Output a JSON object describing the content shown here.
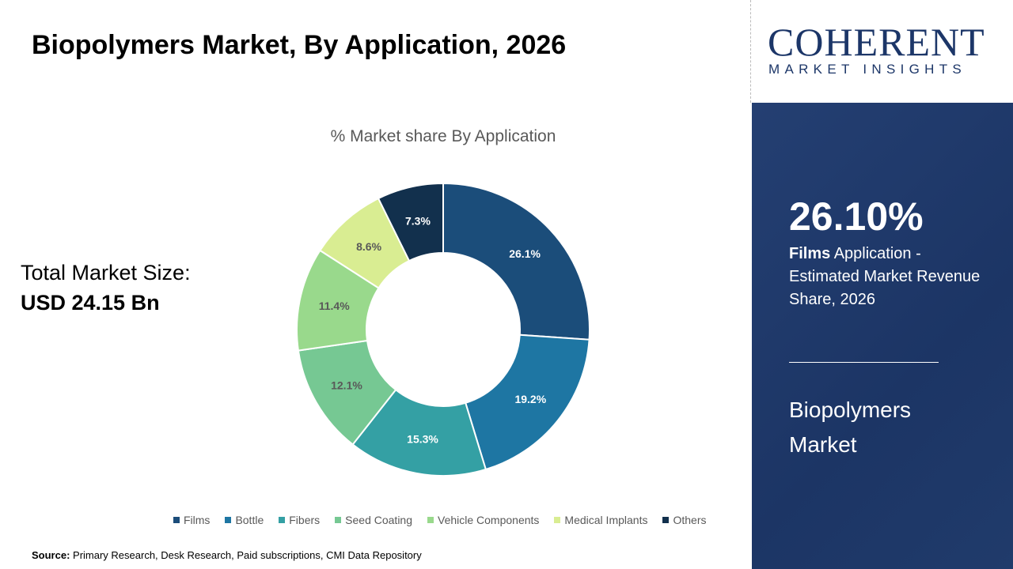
{
  "title": "Biopolymers Market, By Application, 2026",
  "total": {
    "label": "Total Market Size:",
    "value": "USD 24.15 Bn"
  },
  "source": {
    "label": "Source:",
    "text": "Primary Research, Desk Research, Paid subscriptions, CMI Data Repository"
  },
  "logo": {
    "name": "COHERENT",
    "tagline": "MARKET INSIGHTS"
  },
  "panel": {
    "highlight": "26.10%",
    "bold": "Films",
    "desc": " Application - Estimated Market Revenue Share, 2026",
    "market": "Biopolymers Market"
  },
  "chart_data": {
    "type": "donut",
    "title": "% Market share By Application",
    "categories": [
      "Films",
      "Bottle",
      "Fibers",
      "Seed Coating",
      "Vehicle Components",
      "Medical Implants",
      "Others"
    ],
    "values": [
      26.1,
      19.2,
      15.3,
      12.1,
      11.4,
      8.6,
      7.3
    ],
    "labels": [
      "26.1%",
      "19.2%",
      "15.3%",
      "12.1%",
      "11.4%",
      "8.6%",
      "7.3%"
    ],
    "colors": [
      "#1b4d7a",
      "#1e76a3",
      "#34a0a4",
      "#76c893",
      "#99d98c",
      "#d9ed92",
      "#12304d"
    ],
    "legend": "bottom"
  }
}
